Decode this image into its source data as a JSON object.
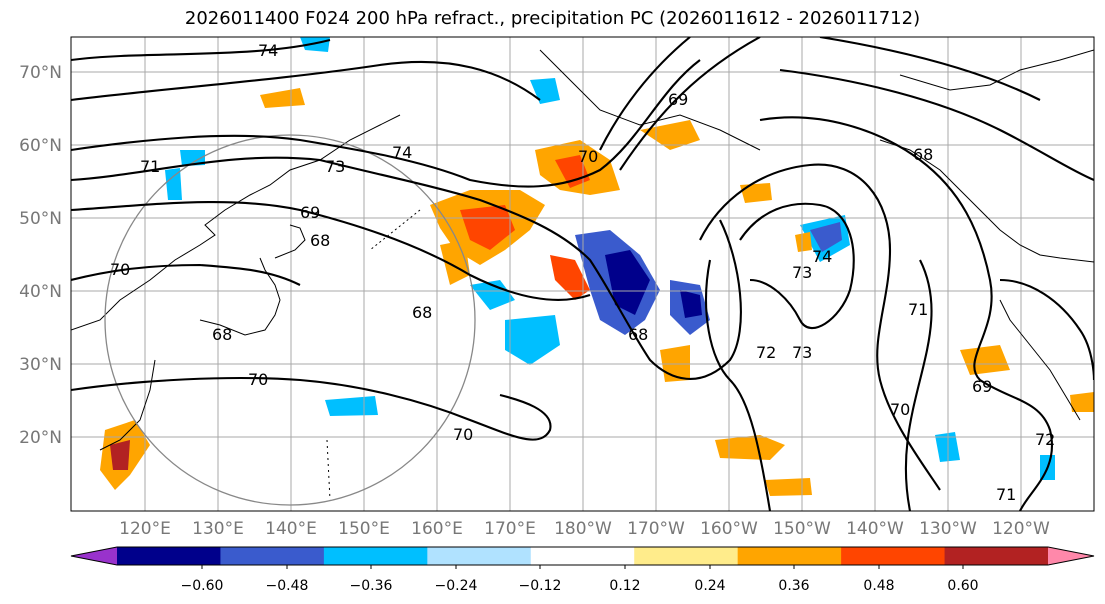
{
  "title": "2026011400 F024 200 hPa refract., precipitation PC (2026011612 - 2026011712)",
  "map": {
    "lat_labels": [
      "70°N",
      "60°N",
      "50°N",
      "40°N",
      "30°N",
      "20°N"
    ],
    "lon_labels": [
      "120°E",
      "130°E",
      "140°E",
      "150°E",
      "160°E",
      "170°E",
      "180°W",
      "170°W",
      "160°W",
      "150°W",
      "140°W",
      "130°W",
      "120°W"
    ],
    "contour_labels": [
      "74",
      "71",
      "73",
      "74",
      "69",
      "70",
      "69",
      "68",
      "70",
      "68",
      "70",
      "70",
      "68",
      "68",
      "72",
      "73",
      "74",
      "73",
      "71",
      "70",
      "69",
      "72",
      "71",
      "68"
    ]
  },
  "colorbar": {
    "ticks": [
      "−0.60",
      "−0.48",
      "−0.36",
      "−0.24",
      "−0.12",
      "0.12",
      "0.24",
      "0.36",
      "0.48",
      "0.60"
    ],
    "colors": [
      "#9932cc",
      "#00008b",
      "#3a5bcd",
      "#00bfff",
      "#b0e2ff",
      "#ffffff",
      "#ffec8b",
      "#ffa500",
      "#ff4500",
      "#b22222",
      "#ff88aa"
    ]
  }
}
